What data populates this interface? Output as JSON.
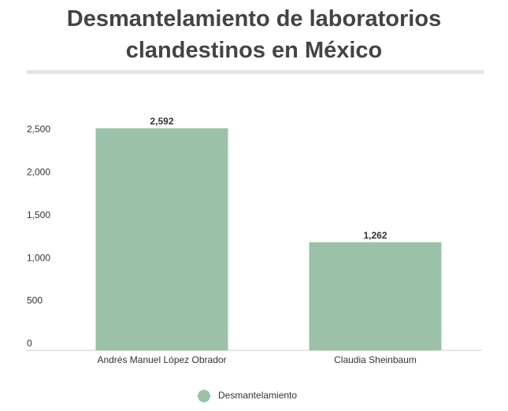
{
  "chart_data": {
    "type": "bar",
    "title": "Desmantelamiento de laboratorios clandestinos en México",
    "categories": [
      "Andrés Manuel López Obrador",
      "Claudia Sheinbaum"
    ],
    "series": [
      {
        "name": "Desmantelamiento",
        "color": "#9bc2a9",
        "values": [
          2592,
          1262
        ],
        "value_labels": [
          "2,592",
          "1,262"
        ]
      }
    ],
    "ylim": [
      0,
      2600
    ],
    "yticks": [
      0,
      500,
      {
        "value": 1000,
        "label": "1,000"
      },
      {
        "value": 1500,
        "label": "1,500"
      },
      {
        "value": 2000,
        "label": "2,000"
      },
      {
        "value": 2500,
        "label": "2,500"
      }
    ],
    "grid": false
  }
}
